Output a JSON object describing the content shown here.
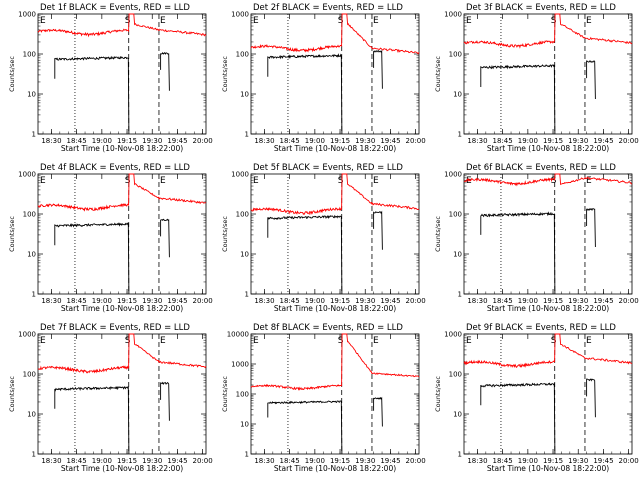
{
  "figure": {
    "xlabel": "Start Time (10-Nov-08 18:22:00)",
    "ylabel": "Counts/sec",
    "x_ticks": [
      "18:30",
      "18:45",
      "19:00",
      "19:15",
      "19:30",
      "19:45",
      "20:00"
    ],
    "marker_labels": [
      "E",
      "S",
      "E"
    ],
    "colors": {
      "events": "#000000",
      "lld": "#ff0000",
      "axes": "#000000",
      "background": "#ffffff"
    }
  },
  "chart_data": [
    {
      "type": "line",
      "title": "Det 1f BLACK = Events, RED = LLD",
      "ylim": [
        1,
        1000
      ],
      "y_ticks": [
        "1",
        "10",
        "100",
        "1000"
      ],
      "x_range": [
        "18:22",
        "20:02"
      ],
      "events": {
        "start": "18:32",
        "end": "19:16",
        "level": 80
      },
      "lld": {
        "level": 350,
        "peak": 1000,
        "tail": 400
      },
      "markers": {
        "dotted": "18:44",
        "dashed": [
          "19:16",
          "19:34"
        ]
      },
      "series": [
        {
          "name": "Events",
          "color": "#000000"
        },
        {
          "name": "LLD",
          "color": "#ff0000"
        }
      ]
    },
    {
      "type": "line",
      "title": "Det 2f BLACK = Events, RED = LLD",
      "ylim": [
        1,
        1000
      ],
      "y_ticks": [
        "1",
        "10",
        "100",
        "1000"
      ],
      "x_range": [
        "18:22",
        "20:02"
      ],
      "events": {
        "start": "18:32",
        "end": "19:16",
        "level": 90
      },
      "lld": {
        "level": 140,
        "peak": 1000,
        "tail": 140
      },
      "markers": {
        "dotted": "18:44",
        "dashed": [
          "19:16",
          "19:34"
        ]
      },
      "series": [
        {
          "name": "Events",
          "color": "#000000"
        },
        {
          "name": "LLD",
          "color": "#ff0000"
        }
      ]
    },
    {
      "type": "line",
      "title": "Det 3f BLACK = Events, RED = LLD",
      "ylim": [
        1,
        1000
      ],
      "y_ticks": [
        "1",
        "10",
        "100",
        "1000"
      ],
      "x_range": [
        "18:22",
        "20:02"
      ],
      "events": {
        "start": "18:32",
        "end": "19:16",
        "level": 50
      },
      "lld": {
        "level": 180,
        "peak": 1000,
        "tail": 250
      },
      "markers": {
        "dotted": "18:44",
        "dashed": [
          "19:16",
          "19:34"
        ]
      },
      "series": [
        {
          "name": "Events",
          "color": "#000000"
        },
        {
          "name": "LLD",
          "color": "#ff0000"
        }
      ]
    },
    {
      "type": "line",
      "title": "Det 4f BLACK = Events, RED = LLD",
      "ylim": [
        1,
        1000
      ],
      "y_ticks": [
        "1",
        "10",
        "100",
        "1000"
      ],
      "x_range": [
        "18:22",
        "20:02"
      ],
      "events": {
        "start": "18:32",
        "end": "19:16",
        "level": 55
      },
      "lld": {
        "level": 150,
        "peak": 1000,
        "tail": 250
      },
      "markers": {
        "dotted": "18:44",
        "dashed": [
          "19:16",
          "19:34"
        ]
      },
      "series": [
        {
          "name": "Events",
          "color": "#000000"
        },
        {
          "name": "LLD",
          "color": "#ff0000"
        }
      ]
    },
    {
      "type": "line",
      "title": "Det 5f BLACK = Events, RED = LLD",
      "ylim": [
        1,
        1000
      ],
      "y_ticks": [
        "1",
        "10",
        "100",
        "1000"
      ],
      "x_range": [
        "18:22",
        "20:02"
      ],
      "events": {
        "start": "18:32",
        "end": "19:16",
        "level": 85
      },
      "lld": {
        "level": 120,
        "peak": 1000,
        "tail": 180
      },
      "markers": {
        "dotted": "18:44",
        "dashed": [
          "19:16",
          "19:34"
        ]
      },
      "series": [
        {
          "name": "Events",
          "color": "#000000"
        },
        {
          "name": "LLD",
          "color": "#ff0000"
        }
      ]
    },
    {
      "type": "line",
      "title": "Det 6f BLACK = Events, RED = LLD",
      "ylim": [
        1,
        1000
      ],
      "y_ticks": [
        "1",
        "10",
        "100",
        "1000"
      ],
      "x_range": [
        "18:22",
        "20:02"
      ],
      "events": {
        "start": "18:32",
        "end": "19:16",
        "level": 100
      },
      "lld": {
        "level": 650,
        "peak": 1000,
        "tail": 800
      },
      "markers": {
        "dotted": "18:44",
        "dashed": [
          "19:16",
          "19:34"
        ]
      },
      "series": [
        {
          "name": "Events",
          "color": "#000000"
        },
        {
          "name": "LLD",
          "color": "#ff0000"
        }
      ]
    },
    {
      "type": "line",
      "title": "Det 7f BLACK = Events, RED = LLD",
      "ylim": [
        1,
        1000
      ],
      "y_ticks": [
        "1",
        "10",
        "100",
        "1000"
      ],
      "x_range": [
        "18:22",
        "20:02"
      ],
      "events": {
        "start": "18:32",
        "end": "19:16",
        "level": 45
      },
      "lld": {
        "level": 130,
        "peak": 1000,
        "tail": 200
      },
      "markers": {
        "dotted": "18:44",
        "dashed": [
          "19:16",
          "19:34"
        ]
      },
      "series": [
        {
          "name": "Events",
          "color": "#000000"
        },
        {
          "name": "LLD",
          "color": "#ff0000"
        }
      ]
    },
    {
      "type": "line",
      "title": "Det 8f BLACK = Events, RED = LLD",
      "ylim": [
        1,
        10000
      ],
      "y_ticks": [
        "1",
        "10",
        "100",
        "1000",
        "10000"
      ],
      "x_range": [
        "18:22",
        "20:02"
      ],
      "events": {
        "start": "18:32",
        "end": "19:16",
        "level": 55
      },
      "lld": {
        "level": 170,
        "peak": 10000,
        "tail": 500
      },
      "markers": {
        "dotted": "18:44",
        "dashed": [
          "19:16",
          "19:34"
        ]
      },
      "series": [
        {
          "name": "Events",
          "color": "#000000"
        },
        {
          "name": "LLD",
          "color": "#ff0000"
        }
      ]
    },
    {
      "type": "line",
      "title": "Det 9f BLACK = Events, RED = LLD",
      "ylim": [
        1,
        1000
      ],
      "y_ticks": [
        "1",
        "10",
        "100",
        "1000"
      ],
      "x_range": [
        "18:22",
        "20:02"
      ],
      "events": {
        "start": "18:32",
        "end": "19:16",
        "level": 55
      },
      "lld": {
        "level": 180,
        "peak": 1000,
        "tail": 250
      },
      "markers": {
        "dotted": "18:44",
        "dashed": [
          "19:16",
          "19:34"
        ]
      },
      "series": [
        {
          "name": "Events",
          "color": "#000000"
        },
        {
          "name": "LLD",
          "color": "#ff0000"
        }
      ]
    }
  ]
}
